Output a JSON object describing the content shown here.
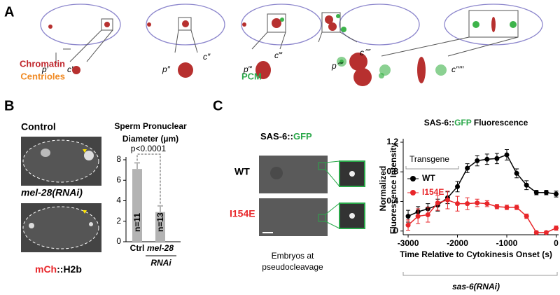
{
  "panel_a": {
    "label": "A",
    "legend": [
      "Chromatin",
      "Centrioles",
      "PCM"
    ],
    "measure_labels": [
      "p′",
      "c′",
      "p″",
      "c″",
      "p‴",
      "c‴",
      "p⁗",
      "c⁗",
      "c′′′′′"
    ]
  },
  "panel_b": {
    "label": "B",
    "image_labels": [
      "Control",
      "mel-28(RNAi)"
    ],
    "stain": [
      "mCh",
      "::H2b"
    ]
  },
  "panel_c": {
    "label": "C",
    "image_title": [
      "SAS-6::",
      "GFP"
    ],
    "rows": [
      "WT",
      "I154E"
    ],
    "caption": [
      "Embryos at",
      "pseudocleavage"
    ]
  },
  "chart_data": [
    {
      "type": "bar",
      "title": [
        "Sperm Pronuclear",
        "Diameter (µm)"
      ],
      "categories": [
        "Ctrl",
        "mel-28"
      ],
      "group_label": "RNAi",
      "values": [
        7.1,
        2.9
      ],
      "errors": [
        0.6,
        0.6
      ],
      "n_labels": [
        "n=11",
        "n=13"
      ],
      "annotation": "p<0.0001",
      "color": "#b3b3b3",
      "ylim": [
        0,
        8
      ],
      "yticks": [
        0,
        2,
        4,
        6,
        8
      ]
    },
    {
      "type": "line",
      "title": [
        "SAS-6::",
        "GFP",
        " Fluorescence"
      ],
      "xlabel": "Time Relative to Cytokinesis Onset (s)",
      "ylabel": [
        "Normalized",
        "Fluorescence Intensity"
      ],
      "legend_title": "Transgene",
      "footer": "sas-6(RNAi)",
      "x": [
        -3000,
        -2800,
        -2600,
        -2400,
        -2200,
        -2000,
        -1800,
        -1600,
        -1400,
        -1200,
        -1000,
        -800,
        -600,
        -400,
        -200,
        0
      ],
      "series": [
        {
          "name": "WT",
          "color": "#000000",
          "values": [
            0.2,
            0.26,
            0.3,
            0.35,
            0.45,
            0.6,
            0.85,
            0.95,
            0.97,
            0.98,
            1.03,
            0.78,
            0.62,
            0.52,
            0.52,
            0.5
          ],
          "errors": [
            0.08,
            0.07,
            0.07,
            0.08,
            0.08,
            0.07,
            0.06,
            0.07,
            0.07,
            0.07,
            0.07,
            0.06,
            0.06,
            0.03,
            0.03,
            0.04
          ]
        },
        {
          "name": "I154E",
          "color": "#e8262a",
          "values": [
            0.08,
            0.2,
            0.22,
            0.38,
            0.42,
            0.37,
            0.37,
            0.38,
            0.37,
            0.33,
            0.32,
            0.32,
            0.2,
            -0.02,
            -0.02,
            0.04
          ],
          "errors": [
            0.07,
            0.1,
            0.1,
            0.1,
            0.12,
            0.1,
            0.08,
            0.05,
            0.04,
            0.03,
            0.03,
            0.03,
            0.03,
            0.02,
            0.02,
            0.03
          ]
        }
      ],
      "xlim": [
        -3100,
        50
      ],
      "ylim": [
        -0.05,
        1.2
      ],
      "xticks": [
        -3000,
        -2000,
        -1000,
        0
      ],
      "yticks": [
        0,
        0.4,
        0.8,
        1.2
      ]
    }
  ]
}
